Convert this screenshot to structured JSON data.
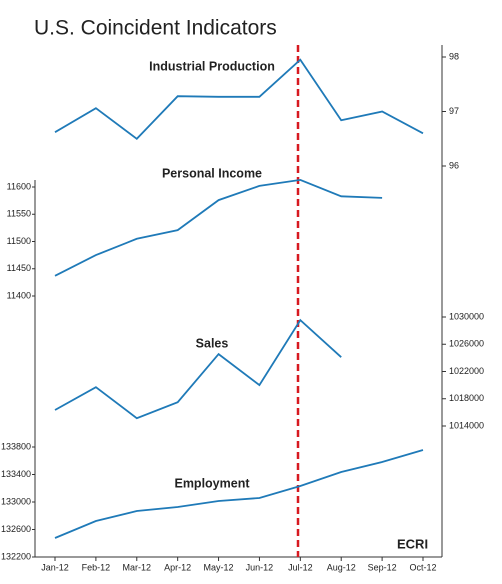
{
  "title": "U.S. Coincident Indicators",
  "logo": "ECRI",
  "chart_data": {
    "type": "line",
    "categories": [
      "Jan-12",
      "Feb-12",
      "Mar-12",
      "Apr-12",
      "May-12",
      "Jun-12",
      "Jul-12",
      "Aug-12",
      "Sep-12",
      "Oct-12"
    ],
    "series": [
      {
        "name": "Industrial Production",
        "color": "#1f7ab8",
        "axis": "y2",
        "values": [
          96.62,
          97.06,
          96.5,
          97.28,
          97.27,
          97.27,
          97.95,
          96.84,
          97.0,
          96.6
        ],
        "ylim": [
          96,
          98
        ],
        "yticks": [
          96,
          97,
          98
        ]
      },
      {
        "name": "Personal Income",
        "color": "#1f7ab8",
        "axis": "y",
        "values": [
          11437,
          11475,
          11505,
          11521,
          11576,
          11602,
          11613,
          11583,
          11580,
          null
        ],
        "ylim": [
          11400,
          11600
        ],
        "yticks": [
          11400,
          11450,
          11500,
          11550,
          11600
        ]
      },
      {
        "name": "Sales",
        "color": "#1f7ab8",
        "axis": "y2",
        "values": [
          1016350,
          1019700,
          1015150,
          1017500,
          1024550,
          1020000,
          1029550,
          1024100,
          null,
          null
        ],
        "ylim": [
          1014000,
          1030000
        ],
        "yticks": [
          1014000,
          1018000,
          1022000,
          1026000,
          1030000
        ]
      },
      {
        "name": "Employment",
        "color": "#1f7ab8",
        "axis": "y",
        "values": [
          132476,
          132724,
          132869,
          132927,
          133015,
          133058,
          133233,
          133436,
          133582,
          133756
        ],
        "ylim": [
          132200,
          133800
        ],
        "yticks": [
          132200,
          132600,
          133000,
          133400,
          133800
        ]
      }
    ]
  }
}
